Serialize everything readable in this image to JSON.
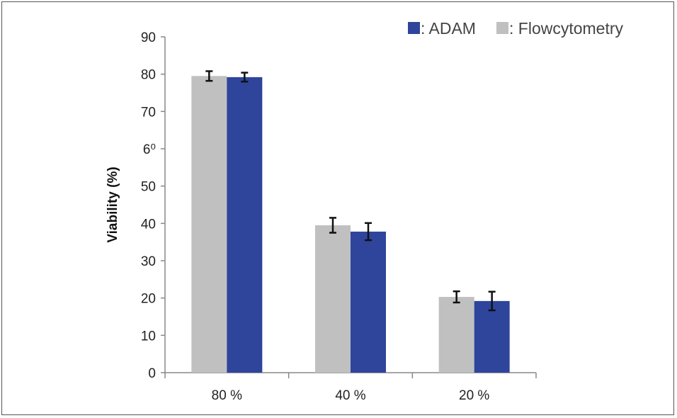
{
  "chart_data": {
    "type": "bar",
    "title": "",
    "xlabel": "",
    "ylabel": "Viability (%)",
    "ylim": [
      0,
      90
    ],
    "yticks": [
      "0",
      "10",
      "20",
      "30",
      "40",
      "50",
      "6⁰",
      "70",
      "80",
      "90"
    ],
    "categories": [
      "80 %",
      "40 %",
      "20 %"
    ],
    "series": [
      {
        "name": ": Flowcytometry",
        "color": "#c0c0c0",
        "values": [
          79.5,
          39.5,
          20.3
        ],
        "errors": [
          1.3,
          2.0,
          1.5
        ]
      },
      {
        "name": ": ADAM",
        "color": "#2e459b",
        "values": [
          79.2,
          37.8,
          19.2
        ],
        "errors": [
          1.2,
          2.3,
          2.5
        ]
      }
    ],
    "legend": {
      "placement": "top-right",
      "order": [
        1,
        0
      ]
    },
    "grid": false
  }
}
